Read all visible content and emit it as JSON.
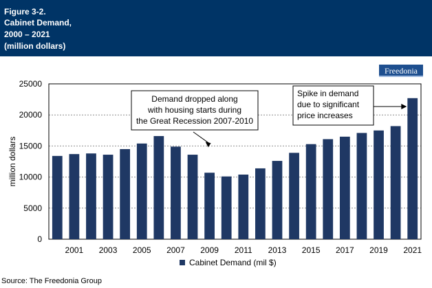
{
  "header": {
    "lines": [
      "Figure 3-2.",
      "Cabinet Demand,",
      "2000 – 2021",
      "(million dollars)"
    ],
    "background": "#003466"
  },
  "logo": {
    "text": "Freedonia",
    "color": "#1e4f8f"
  },
  "source": "Source: The Freedonia Group",
  "chart_data": {
    "type": "bar",
    "categories": [
      "2000",
      "2001",
      "2002",
      "2003",
      "2004",
      "2005",
      "2006",
      "2007",
      "2008",
      "2009",
      "2010",
      "2011",
      "2012",
      "2013",
      "2014",
      "2015",
      "2016",
      "2017",
      "2018",
      "2019",
      "2020",
      "2021"
    ],
    "x_tick_labels": [
      "2001",
      "2003",
      "2005",
      "2007",
      "2009",
      "2011",
      "2013",
      "2015",
      "2017",
      "2019",
      "2021"
    ],
    "series": [
      {
        "name": "Cabinet Demand (mil $)",
        "color": "#1f3864",
        "values": [
          13400,
          13700,
          13800,
          13600,
          14500,
          15400,
          16600,
          14900,
          13600,
          10700,
          10100,
          10400,
          11400,
          12600,
          13900,
          15300,
          16100,
          16500,
          17100,
          17500,
          18200,
          22700
        ]
      }
    ],
    "ylabel": "million dollars",
    "xlabel": "",
    "ylim": [
      0,
      25000
    ],
    "y_ticks": [
      0,
      5000,
      10000,
      15000,
      20000,
      25000
    ],
    "grid": true,
    "legend_position": "bottom",
    "annotations": [
      {
        "lines": [
          "Demand dropped along",
          "with housing starts during",
          "the Great Recession 2007-2010"
        ],
        "points_to": "2009"
      },
      {
        "lines": [
          "Spike in demand",
          "due to significant",
          "price increases"
        ],
        "points_to": "2021"
      }
    ]
  }
}
